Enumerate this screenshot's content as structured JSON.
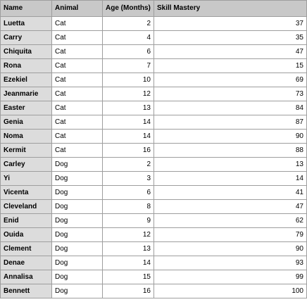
{
  "table": {
    "headers": [
      "Name",
      "Animal",
      "Age (Months)",
      "Skill Mastery"
    ],
    "rows": [
      [
        "Luetta",
        "Cat",
        "2",
        "37"
      ],
      [
        "Carry",
        "Cat",
        "4",
        "35"
      ],
      [
        "Chiquita",
        "Cat",
        "6",
        "47"
      ],
      [
        "Rona",
        "Cat",
        "7",
        "15"
      ],
      [
        "Ezekiel",
        "Cat",
        "10",
        "69"
      ],
      [
        "Jeanmarie",
        "Cat",
        "12",
        "73"
      ],
      [
        "Easter",
        "Cat",
        "13",
        "84"
      ],
      [
        "Genia",
        "Cat",
        "14",
        "87"
      ],
      [
        "Noma",
        "Cat",
        "14",
        "90"
      ],
      [
        "Kermit",
        "Cat",
        "16",
        "88"
      ],
      [
        "Carley",
        "Dog",
        "2",
        "13"
      ],
      [
        "Yi",
        "Dog",
        "3",
        "14"
      ],
      [
        "Vicenta",
        "Dog",
        "6",
        "41"
      ],
      [
        "Cleveland",
        "Dog",
        "8",
        "47"
      ],
      [
        "Enid",
        "Dog",
        "9",
        "62"
      ],
      [
        "Ouida",
        "Dog",
        "12",
        "79"
      ],
      [
        "Clement",
        "Dog",
        "13",
        "90"
      ],
      [
        "Denae",
        "Dog",
        "14",
        "93"
      ],
      [
        "Annalisa",
        "Dog",
        "15",
        "99"
      ],
      [
        "Bennett",
        "Dog",
        "16",
        "100"
      ]
    ]
  }
}
